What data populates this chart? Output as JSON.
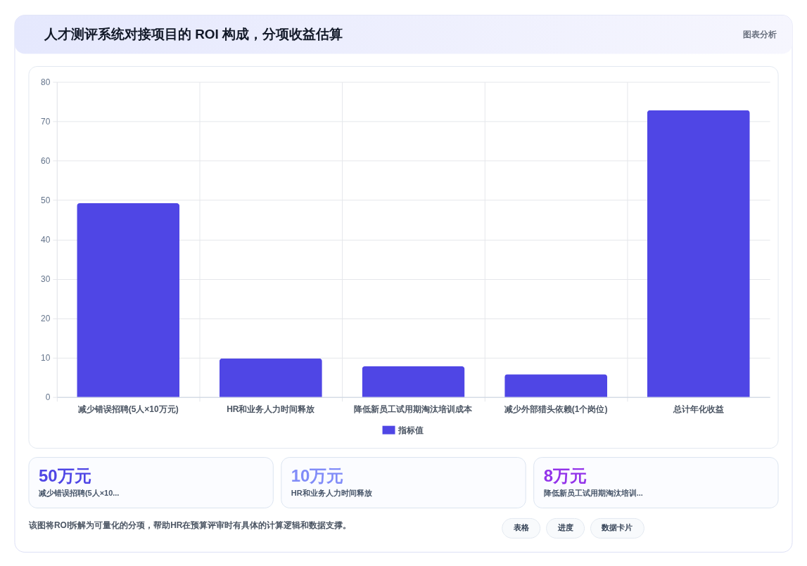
{
  "chart_data": [
    {
      "type": "bar",
      "title": "人才测评系统对接项目的 ROI 构成，分项收益估算",
      "categories": [
        "减少错误招聘(5人×10万元)",
        "HR和业务人力时间释放",
        "降低新员工试用期淘汰培训成本",
        "减少外部猎头依赖(1个岗位)",
        "总计年化收益"
      ],
      "series": [
        {
          "name": "指标值",
          "color": "#4f46e5",
          "values": [
            49.2,
            9.8,
            7.8,
            5.8,
            72.8
          ]
        }
      ],
      "ylim": [
        0,
        80
      ],
      "yticks": [
        0,
        10,
        20,
        30,
        40,
        50,
        60,
        70,
        80
      ],
      "grid": true,
      "legend": "bottom",
      "annotations": [
        "图表分析",
        "该图将ROI拆解为可量化的分项，帮助HR在预算评审时有具体的计算逻辑和数据支撑。",
        "表格",
        "进度",
        "数据卡片"
      ]
    },
    {
      "type": "other",
      "title": "50万元",
      "subtitle": "减少错误招聘(5人×10...",
      "color": "#4f46e5"
    },
    {
      "type": "other",
      "title": "10万元",
      "subtitle": "HR和业务人力时间释放",
      "color": "#818cf8"
    },
    {
      "type": "other",
      "title": "8万元",
      "subtitle": "降低新员工试用期淘汰培训...",
      "color": "#9333ea"
    }
  ]
}
